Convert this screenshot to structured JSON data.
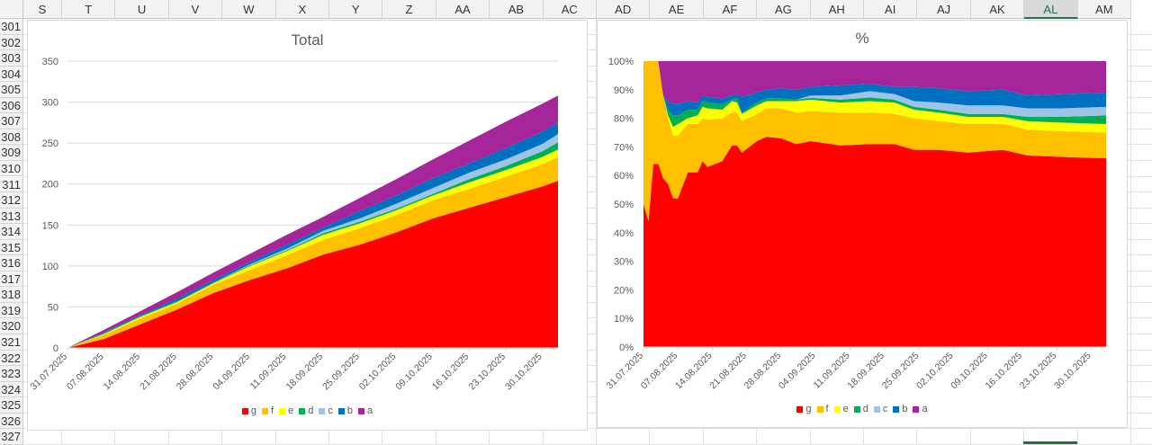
{
  "spreadsheet": {
    "columns": [
      "S",
      "T",
      "U",
      "V",
      "W",
      "X",
      "Y",
      "Z",
      "AA",
      "AB",
      "AC",
      "AD",
      "AE",
      "AF",
      "AG",
      "AH",
      "AI",
      "AJ",
      "AK",
      "AL",
      "AM"
    ],
    "selected_column": "AL",
    "rows": [
      "301",
      "302",
      "303",
      "304",
      "305",
      "306",
      "307",
      "308",
      "309",
      "310",
      "311",
      "312",
      "313",
      "314",
      "315",
      "316",
      "317",
      "318",
      "319",
      "320",
      "321",
      "322",
      "323",
      "324",
      "325",
      "326",
      "327"
    ]
  },
  "colors": {
    "g": "#ff0000",
    "f": "#ffc000",
    "e": "#ffff00",
    "d": "#00b050",
    "c": "#9dc3e6",
    "b": "#0070c0",
    "a": "#a6259a"
  },
  "chart_data": [
    {
      "type": "area",
      "stacked": true,
      "title": "Total",
      "xlabel": "",
      "ylabel": "",
      "ylim": [
        0,
        350
      ],
      "yticks": [
        "0",
        "50",
        "100",
        "150",
        "200",
        "250",
        "300",
        "350"
      ],
      "xticks": [
        "31.07.2025",
        "07.08.2025",
        "14.08.2025",
        "21.08.2025",
        "28.08.2025",
        "04.09.2025",
        "11.09.2025",
        "18.09.2025",
        "25.09.2025",
        "02.10.2025",
        "09.10.2025",
        "16.10.2025",
        "23.10.2025",
        "30.10.2025"
      ],
      "grid": true,
      "legend": "bottom",
      "x": [
        "31.07.2025",
        "07.08.2025",
        "14.08.2025",
        "21.08.2025",
        "28.08.2025",
        "04.09.2025",
        "11.09.2025",
        "18.09.2025",
        "25.09.2025",
        "02.10.2025",
        "09.10.2025",
        "16.10.2025",
        "23.10.2025",
        "30.10.2025",
        "02.11.2025"
      ],
      "series": [
        {
          "name": "g",
          "values": [
            0,
            11,
            29,
            47,
            67,
            83,
            97,
            114,
            126,
            141,
            158,
            171,
            184,
            197,
            204
          ]
        },
        {
          "name": "f",
          "values": [
            0,
            5,
            7,
            7,
            10,
            12,
            16,
            18,
            20,
            21,
            22,
            23,
            25,
            27,
            29
          ]
        },
        {
          "name": "e",
          "values": [
            0,
            1,
            2,
            2,
            2,
            5,
            5,
            6,
            6,
            6,
            6,
            8,
            8,
            9,
            9
          ]
        },
        {
          "name": "d",
          "values": [
            0,
            1,
            1,
            1,
            1,
            1,
            1,
            2,
            2,
            2,
            2,
            4,
            5,
            7,
            9
          ]
        },
        {
          "name": "c",
          "values": [
            0,
            0,
            0,
            0,
            0,
            1,
            2,
            3,
            4,
            6,
            7,
            8,
            8,
            9,
            10
          ]
        },
        {
          "name": "b",
          "values": [
            0,
            1,
            1,
            3,
            3,
            3,
            5,
            4,
            9,
            10,
            12,
            11,
            14,
            15,
            14
          ]
        },
        {
          "name": "a",
          "values": [
            0,
            3,
            5,
            8,
            9,
            10,
            12,
            13,
            16,
            20,
            23,
            28,
            32,
            34,
            33
          ]
        }
      ]
    },
    {
      "type": "area",
      "stacked": true,
      "percent": true,
      "title": "%",
      "xlabel": "",
      "ylabel": "",
      "ylim": [
        0,
        100
      ],
      "yticks": [
        "0%",
        "10%",
        "20%",
        "30%",
        "40%",
        "50%",
        "60%",
        "70%",
        "80%",
        "90%",
        "100%"
      ],
      "xticks": [
        "31.07.2025",
        "07.08.2025",
        "14.08.2025",
        "21.08.2025",
        "28.08.2025",
        "04.09.2025",
        "11.09.2025",
        "18.09.2025",
        "25.09.2025",
        "02.10.2025",
        "09.10.2025",
        "16.10.2025",
        "23.10.2025",
        "30.10.2025"
      ],
      "grid": false,
      "legend": "bottom",
      "x": [
        "31.07.2025",
        "01.08.2025",
        "02.08.2025",
        "03.08.2025",
        "04.08.2025",
        "05.08.2025",
        "06.08.2025",
        "07.08.2025",
        "09.08.2025",
        "11.08.2025",
        "12.08.2025",
        "13.08.2025",
        "16.08.2025",
        "18.08.2025",
        "19.08.2025",
        "20.08.2025",
        "23.08.2025",
        "25.08.2025",
        "28.08.2025",
        "31.08.2025",
        "03.09.2025",
        "09.09.2025",
        "15.09.2025",
        "20.09.2025",
        "24.09.2025",
        "29.09.2025",
        "05.10.2025",
        "12.10.2025",
        "17.10.2025",
        "24.10.2025",
        "02.11.2025"
      ],
      "series": [
        {
          "name": "g",
          "values": [
            50,
            44,
            64,
            64,
            59,
            57,
            52,
            52,
            61,
            61,
            65,
            63,
            65,
            70.5,
            70.5,
            68,
            72,
            73.5,
            73,
            71,
            72,
            70.5,
            71,
            71,
            69,
            69,
            68,
            69,
            67,
            66.5,
            66
          ]
        },
        {
          "name": "f",
          "values": [
            50,
            56,
            36,
            36,
            29,
            23,
            22,
            22,
            17,
            17,
            15,
            16.5,
            15,
            11.5,
            11.5,
            11,
            9.5,
            10,
            10.5,
            11,
            10.5,
            11.5,
            11,
            10.5,
            11,
            10,
            10,
            9,
            9,
            9,
            9
          ]
        },
        {
          "name": "e",
          "values": [
            0,
            0,
            0,
            0,
            0,
            1,
            3,
            4,
            2,
            3,
            4,
            4,
            3,
            4,
            3.5,
            2.5,
            3,
            2.5,
            2.5,
            4,
            4,
            3.5,
            4,
            4,
            3,
            3,
            2.5,
            2.5,
            3,
            3,
            3
          ]
        },
        {
          "name": "d",
          "values": [
            0,
            0,
            0,
            0,
            0,
            2,
            4,
            3,
            3,
            2,
            2,
            2,
            2,
            0.5,
            1.5,
            0.5,
            1,
            1,
            1,
            0.5,
            0.7,
            1,
            1.3,
            1,
            1,
            1,
            1,
            1,
            1.5,
            2,
            3
          ]
        },
        {
          "name": "c",
          "values": [
            0,
            0,
            0,
            0,
            0,
            0,
            0,
            0,
            0,
            0,
            0,
            0,
            0,
            0,
            0,
            0,
            0,
            0,
            0,
            0,
            0.8,
            1.5,
            2.2,
            2,
            2,
            2.5,
            3,
            3,
            3,
            3,
            3
          ]
        },
        {
          "name": "b",
          "values": [
            0,
            0,
            0,
            0,
            0,
            3,
            4,
            4,
            3,
            2.5,
            2,
            2,
            2,
            1.5,
            1.5,
            5.5,
            3.5,
            3,
            3.5,
            3.5,
            3,
            3.5,
            2.5,
            2.5,
            5,
            5,
            5,
            5.5,
            4.5,
            5,
            5
          ]
        },
        {
          "name": "a",
          "values": [
            0,
            0,
            0,
            0,
            12,
            14,
            15,
            15,
            14,
            14.5,
            12,
            12.5,
            13,
            12,
            11.5,
            12.5,
            11,
            10,
            9.5,
            10,
            9,
            8.5,
            8,
            9,
            9,
            9.5,
            10.5,
            10,
            12,
            11.5,
            11
          ]
        }
      ]
    }
  ]
}
